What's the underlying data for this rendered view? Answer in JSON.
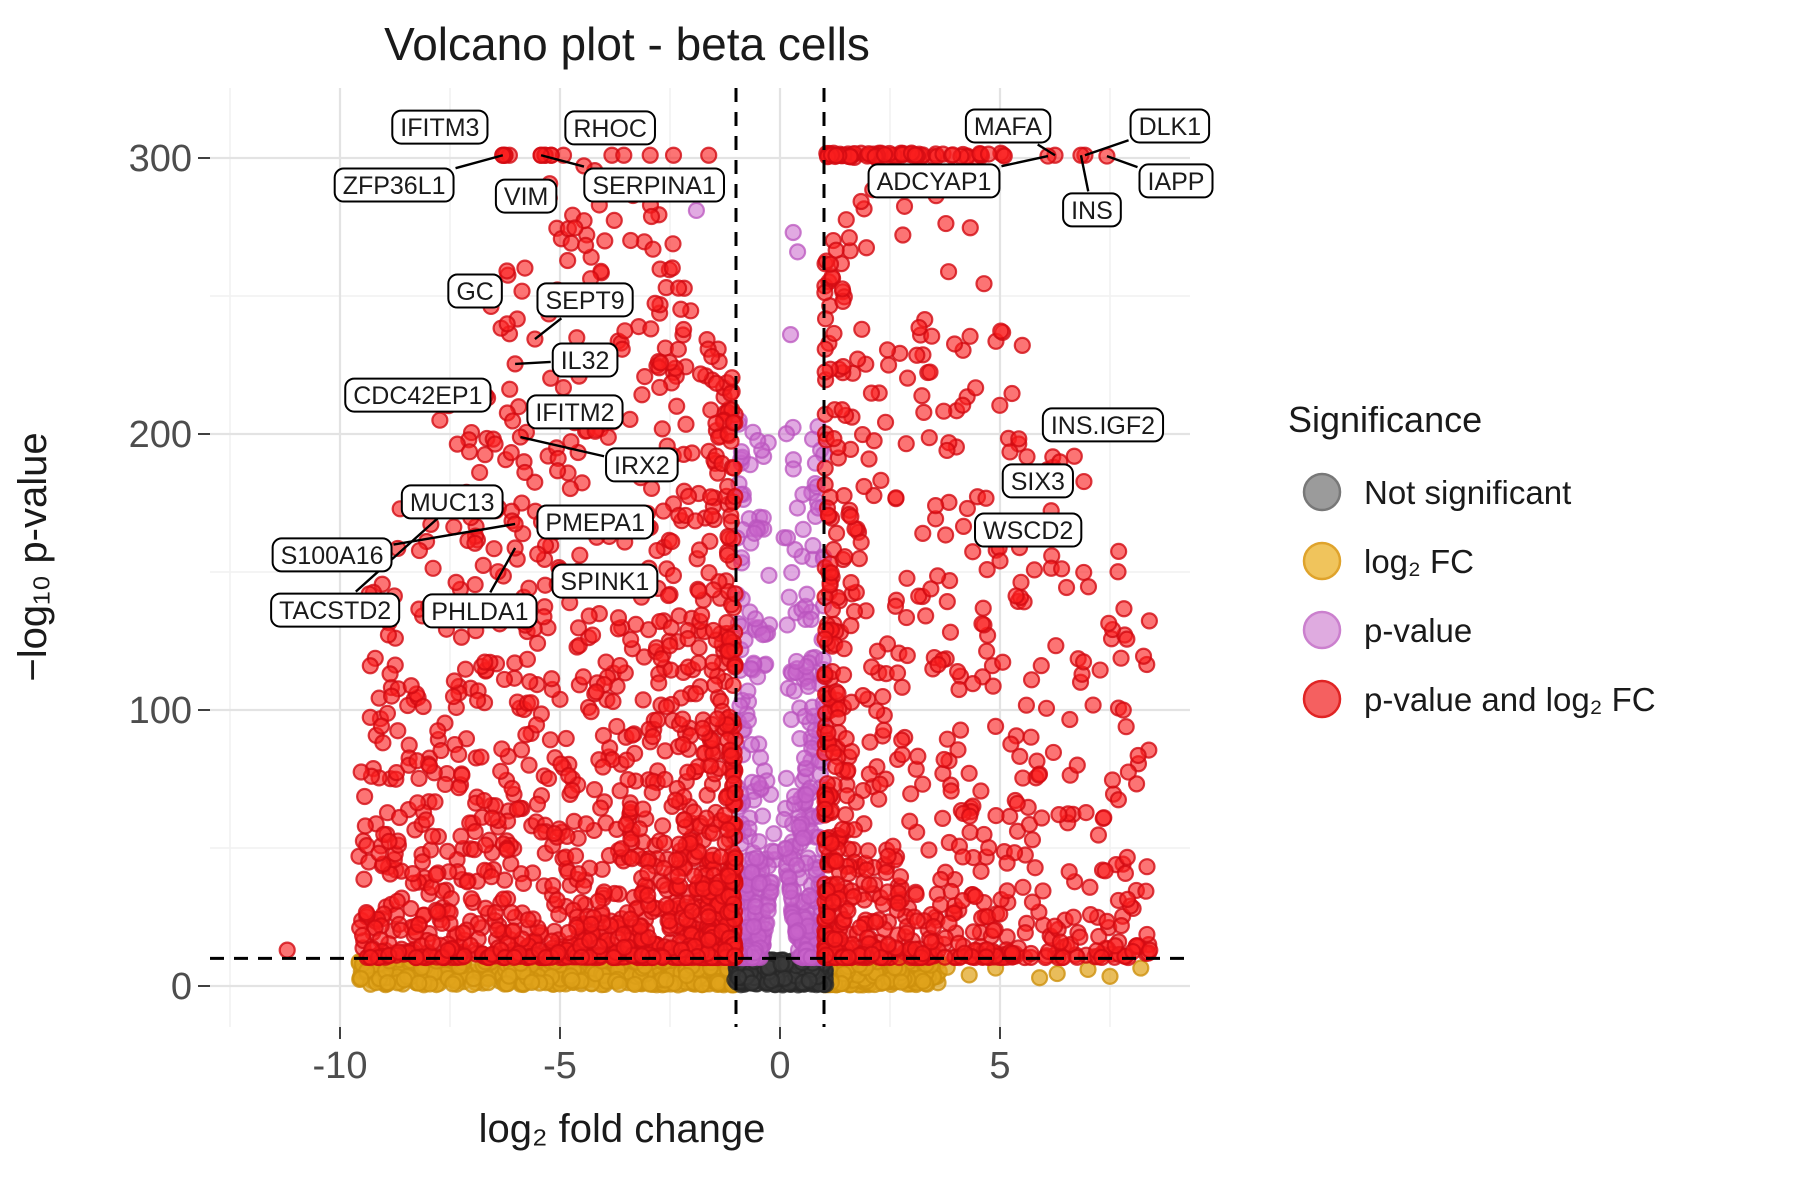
{
  "title": "Volcano plot - beta cells",
  "axes": {
    "x": {
      "title": "log₂ fold change",
      "ticks": [
        -10,
        -5,
        0,
        5
      ],
      "minor": [
        -12.5,
        -7.5,
        -2.5,
        2.5,
        7.5
      ],
      "range": [
        -12.95,
        9.32
      ]
    },
    "y": {
      "title": "−log₁₀ p-value",
      "ticks": [
        0,
        100,
        200,
        300
      ],
      "minor": [
        50,
        150,
        250
      ],
      "range": [
        -15,
        325.4
      ]
    }
  },
  "thresholds": {
    "log2fc": [
      -1,
      1
    ],
    "neglog10p": 10
  },
  "legend": {
    "title": "Significance",
    "items": [
      {
        "label": "Not significant",
        "fill": "#9b9b9b",
        "stroke": "#787878"
      },
      {
        "label": "log₂ FC",
        "fill": "#f0c45c",
        "stroke": "#dfa32c"
      },
      {
        "label": "p-value",
        "fill": "#dfabe0",
        "stroke": "#cb80ce"
      },
      {
        "label": "p-value and log₂ FC",
        "fill": "#f56060",
        "stroke": "#e02424"
      }
    ]
  },
  "chart_data": {
    "type": "scatter",
    "title": "Volcano plot - beta cells",
    "xlabel": "log₂ fold change",
    "ylabel": "−log₁₀ p-value",
    "xlim": [
      -12.95,
      9.32
    ],
    "ylim": [
      -15,
      325.4
    ],
    "x_ticks": [
      -10,
      -5,
      0,
      5
    ],
    "y_ticks": [
      0,
      100,
      200,
      300
    ],
    "grid": true,
    "legend_position": "right",
    "threshold_lines": {
      "vertical_x": [
        -1,
        1
      ],
      "horizontal_y": 10
    },
    "p_cap_value": 301,
    "point_colors": {
      "ns": {
        "fill": "rgba(60,60,60,0.55)",
        "stroke": "rgba(40,40,40,0.75)"
      },
      "fc": {
        "fill": "rgba(224,164,28,0.72)",
        "stroke": "rgba(205,144,12,0.8)"
      },
      "p": {
        "fill": "rgba(200,100,202,0.55)",
        "stroke": "rgba(186,84,189,0.75)"
      },
      "both": {
        "fill": "rgba(250,30,30,0.62)",
        "stroke": "rgba(210,10,18,0.8)"
      }
    },
    "labeled_genes": [
      {
        "gene": "IFITM3",
        "x": -6.25,
        "y": 301,
        "label_x": -7.73,
        "label_y": 311.2,
        "leader": false
      },
      {
        "gene": "RHOC",
        "x": -5.34,
        "y": 301,
        "label_x": -3.86,
        "label_y": 310.9,
        "leader": false
      },
      {
        "gene": "ZFP36L1",
        "x": -6.3,
        "y": 301,
        "label_x": -8.77,
        "label_y": 290.2,
        "leader": true
      },
      {
        "gene": "VIM",
        "x": -5.2,
        "y": 301,
        "label_x": -5.77,
        "label_y": 286.2,
        "leader": false
      },
      {
        "gene": "SERPINA1",
        "x": -5.43,
        "y": 301,
        "label_x": -2.86,
        "label_y": 290.2,
        "leader": true
      },
      {
        "gene": "MAFA",
        "x": 6.25,
        "y": 301,
        "label_x": 5.18,
        "label_y": 311.6,
        "leader": true
      },
      {
        "gene": "DLK1",
        "x": 6.93,
        "y": 301,
        "label_x": 8.86,
        "label_y": 311.6,
        "leader": true
      },
      {
        "gene": "ADCYAP1",
        "x": 6.09,
        "y": 300.7,
        "label_x": 3.5,
        "label_y": 291.7,
        "leader": true
      },
      {
        "gene": "INS",
        "x": 6.84,
        "y": 301,
        "label_x": 7.09,
        "label_y": 281.2,
        "leader": true
      },
      {
        "gene": "IAPP",
        "x": 7.43,
        "y": 300.7,
        "label_x": 9.0,
        "label_y": 291.7,
        "leader": true
      },
      {
        "gene": "GC",
        "x": -6.2,
        "y": 239.9,
        "label_x": -6.93,
        "label_y": 251.8,
        "leader": false
      },
      {
        "gene": "SEPT9",
        "x": -5.57,
        "y": 234.4,
        "label_x": -4.43,
        "label_y": 248.6,
        "leader": true
      },
      {
        "gene": "IL32",
        "x": -6.02,
        "y": 225.4,
        "label_x": -4.43,
        "label_y": 226.8,
        "leader": true
      },
      {
        "gene": "CDC42EP1",
        "x": -7.73,
        "y": 205,
        "label_x": -8.23,
        "label_y": 214.1,
        "leader": false
      },
      {
        "gene": "IFITM2",
        "x": -4.2,
        "y": 201,
        "label_x": -4.66,
        "label_y": 208.0,
        "leader": false
      },
      {
        "gene": "IRX2",
        "x": -5.9,
        "y": 198.9,
        "label_x": -3.14,
        "label_y": 188.8,
        "leader": true
      },
      {
        "gene": "MUC13",
        "x": -6.1,
        "y": 172,
        "label_x": -7.45,
        "label_y": 175.4,
        "leader": false
      },
      {
        "gene": "PMEPA1",
        "x": -6.09,
        "y": 168.5,
        "label_x": -4.2,
        "label_y": 168.1,
        "leader": false
      },
      {
        "gene": "S100A16",
        "x": -6.02,
        "y": 167.4,
        "label_x": -10.18,
        "label_y": 156.2,
        "leader": true
      },
      {
        "gene": "TACSTD2",
        "x": -7.16,
        "y": 178.3,
        "label_x": -10.11,
        "label_y": 136.2,
        "leader": true
      },
      {
        "gene": "PHLDA1",
        "x": -6.02,
        "y": 158.7,
        "label_x": -6.82,
        "label_y": 135.9,
        "leader": true
      },
      {
        "gene": "SPINK1",
        "x": -5.0,
        "y": 150.7,
        "label_x": -3.98,
        "label_y": 146.7,
        "leader": false
      },
      {
        "gene": "INS.IGF2",
        "x": 6.2,
        "y": 191.7,
        "label_x": 7.34,
        "label_y": 203.3,
        "leader": false
      },
      {
        "gene": "SIX3",
        "x": 6.36,
        "y": 189.9,
        "label_x": 5.86,
        "label_y": 183.0,
        "leader": false
      },
      {
        "gene": "WSCD2",
        "x": 5.0,
        "y": 154,
        "label_x": 5.64,
        "label_y": 165.2,
        "leader": false
      }
    ],
    "cap_row_left_x": [
      -6.3,
      -6.25,
      -6.15,
      -5.43,
      -5.34,
      -5.2,
      -4.92,
      -3.82,
      -3.55,
      -2.95,
      -2.42,
      -1.62
    ],
    "cap_row_right": {
      "seed": 606,
      "n": 74,
      "x_min": 1.06,
      "x_spread": 4.05,
      "x_pow": 1.55,
      "y_base": 300.2,
      "y_jitter": 1.6
    },
    "extra_points": {
      "both": [
        [
          -11.2,
          13
        ]
      ],
      "p": [
        [
          -1.9,
          281
        ],
        [
          0.24,
          236
        ],
        [
          0.4,
          266
        ],
        [
          0.3,
          273
        ]
      ],
      "fc": [
        [
          3.8,
          6.8
        ],
        [
          4.3,
          4
        ],
        [
          4.9,
          6.5
        ],
        [
          5.9,
          3
        ],
        [
          6.3,
          4.5
        ],
        [
          7.0,
          6
        ],
        [
          7.5,
          3.5
        ],
        [
          8.2,
          6.5
        ]
      ]
    },
    "cloud": {
      "left_red": {
        "seed": 101,
        "n": 1500,
        "sign": -1,
        "x0": 1.02,
        "xspread": 8.55,
        "xpow": 1.75,
        "center": -4.2,
        "t0": 1.12,
        "tdiv": 8.2,
        "tmin": 0.12,
        "y0": 10.3,
        "yspread": 288,
        "ypow": 2.55
      },
      "right_red": {
        "seed": 202,
        "n": 820,
        "sign": 1,
        "x0": 1.02,
        "xspread": 7.4,
        "xpow": 2.05,
        "center": 2.8,
        "t0": 1.1,
        "tdiv": 8.5,
        "tmin": 0.18,
        "y0": 10.3,
        "yspread": 288,
        "ypow": 2.6
      },
      "purple": {
        "seed": 303,
        "n": 540,
        "xa_min": 0.08,
        "xa_spread": 0.92,
        "xa_pow": 0.62,
        "y0": 10.3,
        "yspread": 195,
        "ypow": 3.2,
        "notch_w": 0.45,
        "notch_h": 52
      },
      "gold": {
        "seed": 404,
        "n": 1050,
        "left_frac": 0.62,
        "left_x0": 1.02,
        "left_spread": 8.55,
        "left_pow": 1.85,
        "right_x0": 1.02,
        "right_spread": 2.6,
        "right_pow": 2.3,
        "y_min": 0.4,
        "y_spread": 9.2,
        "y_pow": 1.15
      },
      "gray": {
        "seed": 505,
        "n": 430,
        "x_min": -1.04,
        "x_span": 2.08,
        "y_min": 0.4,
        "y_spread": 9.3,
        "y_pow": 1.1
      }
    }
  }
}
